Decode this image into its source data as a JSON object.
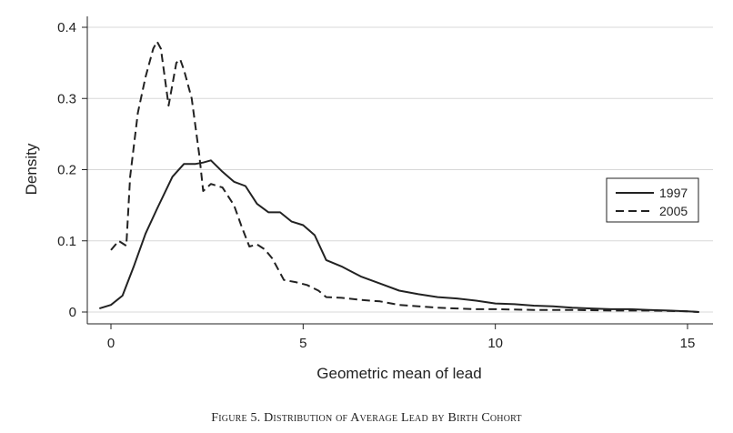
{
  "caption": "Figure 5. Distribution of Average Lead by Birth Cohort",
  "chart_data": {
    "type": "line",
    "title": "",
    "xlabel": "Geometric mean of lead",
    "ylabel": "Density",
    "xlim": [
      -0.5,
      15.5
    ],
    "ylim": [
      0,
      0.4
    ],
    "xticks": [
      0,
      5,
      10,
      15
    ],
    "yticks": [
      0,
      0.1,
      0.2,
      0.3,
      0.4
    ],
    "ytick_labels": [
      "0",
      "0.1",
      "0.2",
      "0.3",
      "0.4"
    ],
    "grid": "horizontal",
    "legend_position": "right",
    "series": [
      {
        "name": "1997",
        "style": "solid",
        "color": "#222222",
        "x": [
          -0.3,
          0,
          0.3,
          0.6,
          0.9,
          1.2,
          1.6,
          1.9,
          2.2,
          2.4,
          2.6,
          2.9,
          3.2,
          3.5,
          3.8,
          4.1,
          4.4,
          4.7,
          5.0,
          5.3,
          5.6,
          6.0,
          6.5,
          7.0,
          7.5,
          8.0,
          8.5,
          9.0,
          9.5,
          10.0,
          10.5,
          11.0,
          11.5,
          12.0,
          12.5,
          13.0,
          13.5,
          14.0,
          14.5,
          15.0,
          15.3
        ],
        "y": [
          0.005,
          0.01,
          0.023,
          0.065,
          0.11,
          0.145,
          0.19,
          0.208,
          0.208,
          0.21,
          0.213,
          0.197,
          0.183,
          0.177,
          0.152,
          0.14,
          0.14,
          0.127,
          0.122,
          0.108,
          0.073,
          0.064,
          0.05,
          0.04,
          0.03,
          0.025,
          0.021,
          0.019,
          0.016,
          0.012,
          0.011,
          0.009,
          0.008,
          0.006,
          0.005,
          0.004,
          0.004,
          0.003,
          0.002,
          0.001,
          0.0
        ]
      },
      {
        "name": "2005",
        "style": "dashed",
        "color": "#222222",
        "x": [
          0.0,
          0.2,
          0.4,
          0.5,
          0.7,
          0.9,
          1.1,
          1.2,
          1.3,
          1.5,
          1.7,
          1.8,
          1.9,
          2.1,
          2.3,
          2.4,
          2.6,
          2.9,
          3.2,
          3.4,
          3.6,
          3.8,
          4.0,
          4.2,
          4.5,
          4.8,
          5.1,
          5.4,
          5.6,
          6.0,
          6.5,
          7.0,
          7.5,
          8.0,
          8.5,
          9.0,
          9.5,
          10.0,
          11.0,
          12.0,
          13.0,
          14.0,
          15.0,
          15.3
        ],
        "y": [
          0.087,
          0.1,
          0.093,
          0.19,
          0.28,
          0.33,
          0.37,
          0.38,
          0.37,
          0.29,
          0.35,
          0.355,
          0.34,
          0.3,
          0.22,
          0.17,
          0.18,
          0.175,
          0.15,
          0.12,
          0.092,
          0.095,
          0.088,
          0.075,
          0.045,
          0.042,
          0.038,
          0.03,
          0.021,
          0.02,
          0.017,
          0.015,
          0.01,
          0.008,
          0.006,
          0.005,
          0.004,
          0.004,
          0.003,
          0.003,
          0.002,
          0.002,
          0.001,
          0.0
        ]
      }
    ]
  }
}
